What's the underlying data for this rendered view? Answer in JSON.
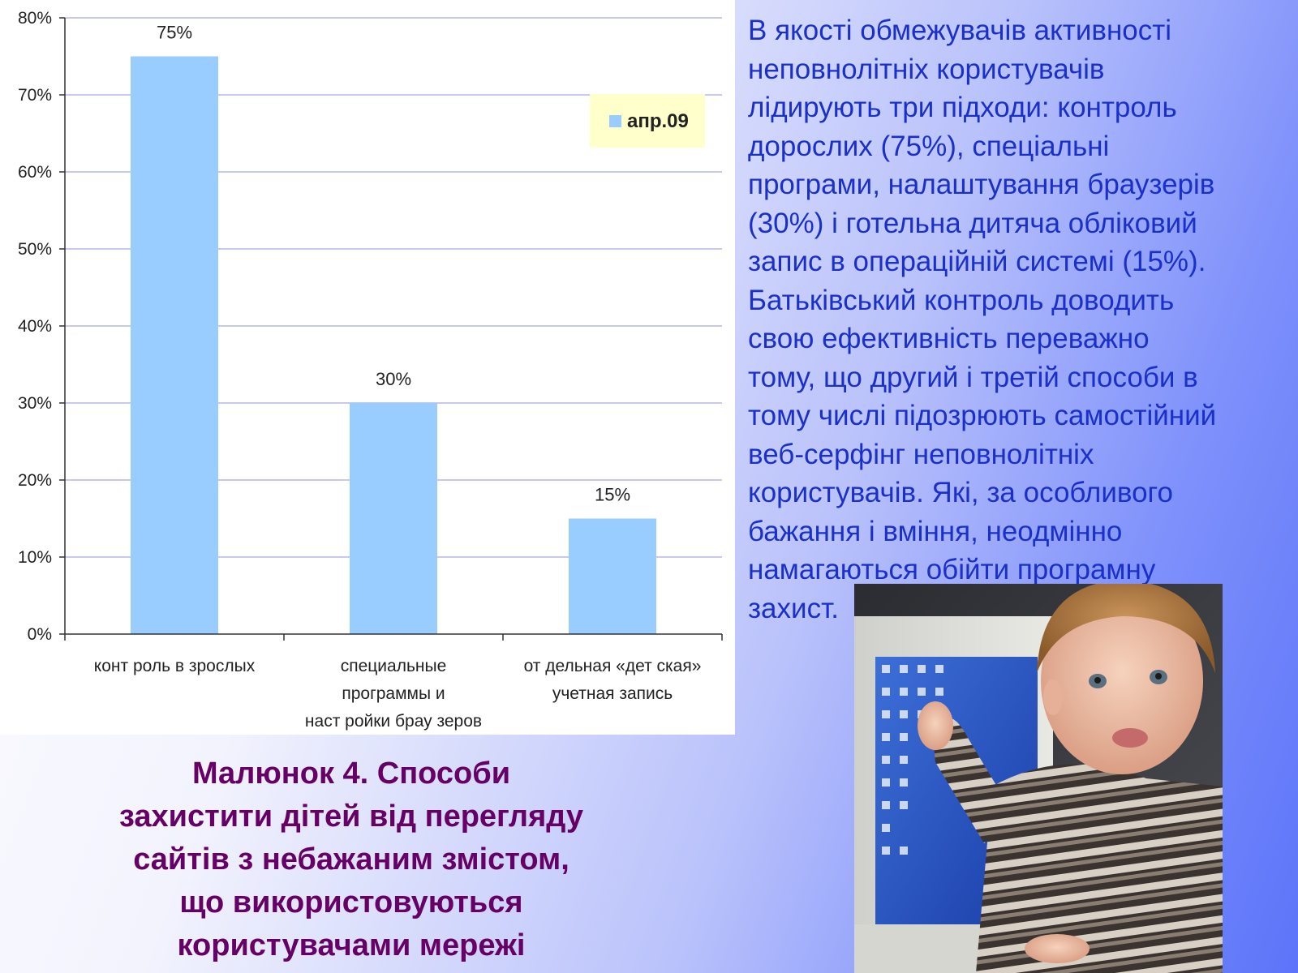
{
  "chart_data": {
    "type": "bar",
    "categories": [
      "конт роль в зрослых",
      "специальные программы и наст ройки брау зеров",
      "от дельная «дет ская» учетная запись"
    ],
    "category_lines": [
      [
        "конт роль в зрослых"
      ],
      [
        "специальные",
        "программы и",
        "наст ройки брау зеров"
      ],
      [
        "от дельная «дет ская»",
        "учетная запись"
      ]
    ],
    "series": [
      {
        "name": "апр.09",
        "values": [
          75,
          30,
          15
        ],
        "color": "#99ccff"
      }
    ],
    "data_labels": [
      "75%",
      "30%",
      "15%"
    ],
    "y_ticks": [
      0,
      10,
      20,
      30,
      40,
      50,
      60,
      70,
      80
    ],
    "y_tick_labels": [
      "0%",
      "10%",
      "20%",
      "30%",
      "40%",
      "50%",
      "60%",
      "70%",
      "80%"
    ],
    "ylim": [
      0,
      80
    ],
    "grid": true,
    "legend_position": "top-right",
    "legend_background": "#ffffcc",
    "gridline_color": "#c8c8f0"
  },
  "caption": "Малюнок 4. Способи\nзахистити дітей від перегляду\nсайтів з небажаним змістом,\nщо використовуються\nкористувачами мережі",
  "body_text": "В якості обмежувачів активності\nнеповнолітніх користувачів\nлідирують три підходи: контроль\nдорослих (75%), спеціальні\nпрограми, налаштування браузерів\n(30%) і готельна дитяча обліковий\nзапис в операційній системі (15%).\nБатьківський контроль доводить\nсвою ефективність переважно\nтому, що другий і третій способи в\nтому числі підозрюють самостійний\nвеб-серфінг неповнолітніх\nкористувачів. Які, за особливого\nбажання і вміння, неодмінно\nнамагаються обійти програмну\nзахист.",
  "colors": {
    "caption": "#660066",
    "body_text": "#1a30c8"
  },
  "photo": {
    "subject": "child-at-computer-photo"
  }
}
